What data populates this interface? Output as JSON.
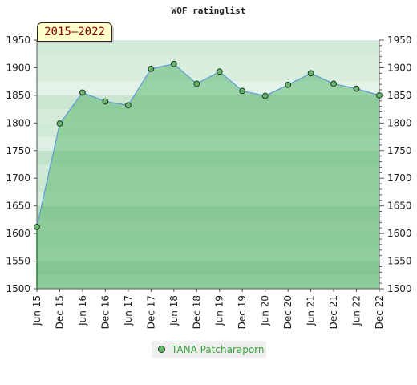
{
  "chart_data": {
    "type": "area",
    "title": "WOF ratinglist",
    "period_label": "2015–2022",
    "x": [
      "Jun 15",
      "Dec 15",
      "Jun 16",
      "Dec 16",
      "Jun 17",
      "Dec 17",
      "Jun 18",
      "Dec 18",
      "Jun 19",
      "Dec 19",
      "Jun 20",
      "Dec 20",
      "Jun 21",
      "Dec 21",
      "Jun 22",
      "Dec 22"
    ],
    "series": [
      {
        "name": "TANA Patcharaporn",
        "values": [
          1612,
          1799,
          1855,
          1839,
          1832,
          1898,
          1907,
          1871,
          1893,
          1858,
          1849,
          1869,
          1890,
          1871,
          1862,
          1850
        ]
      }
    ],
    "ylim": [
      1500,
      1950
    ],
    "yticks": [
      1500,
      1550,
      1600,
      1650,
      1700,
      1750,
      1800,
      1850,
      1900,
      1950
    ],
    "grid": true,
    "legend_position": "bottom",
    "colors": {
      "line": "#5b9bd5",
      "fill": "#5fb870",
      "marker": "#6ab86f",
      "marker_edge": "#1f3a1f"
    }
  }
}
